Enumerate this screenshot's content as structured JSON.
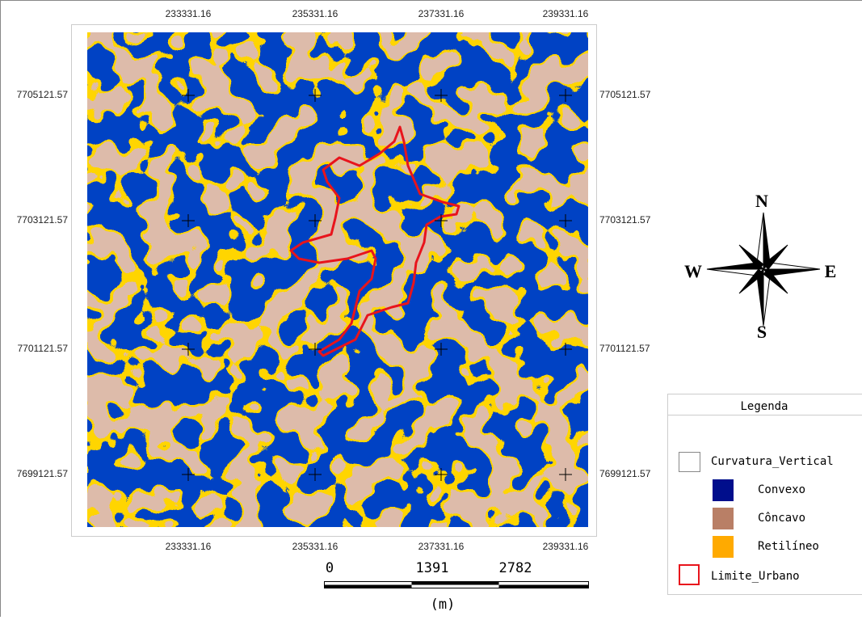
{
  "map": {
    "top_labels": [
      "233331.16",
      "235331.16",
      "237331.16",
      "239331.16"
    ],
    "bottom_labels": [
      "233331.16",
      "235331.16",
      "237331.16",
      "239331.16"
    ],
    "left_labels": [
      "7705121.57",
      "7703121.57",
      "7701121.57",
      "7699121.57"
    ],
    "right_labels": [
      "7705121.57",
      "7703121.57",
      "7701121.57",
      "7699121.57"
    ]
  },
  "compass": {
    "north": "N",
    "south": "S",
    "west": "W",
    "east": "E"
  },
  "legend": {
    "title": "Legenda",
    "items": [
      {
        "label": "Curvatura_Vertical"
      },
      {
        "label": "Convexo"
      },
      {
        "label": "Côncavo"
      },
      {
        "label": "Retilíneo"
      },
      {
        "label": "Limite_Urbano"
      }
    ]
  },
  "scale_bar": {
    "labels": [
      "0",
      "1391",
      "2782"
    ],
    "unit": "(m)"
  }
}
